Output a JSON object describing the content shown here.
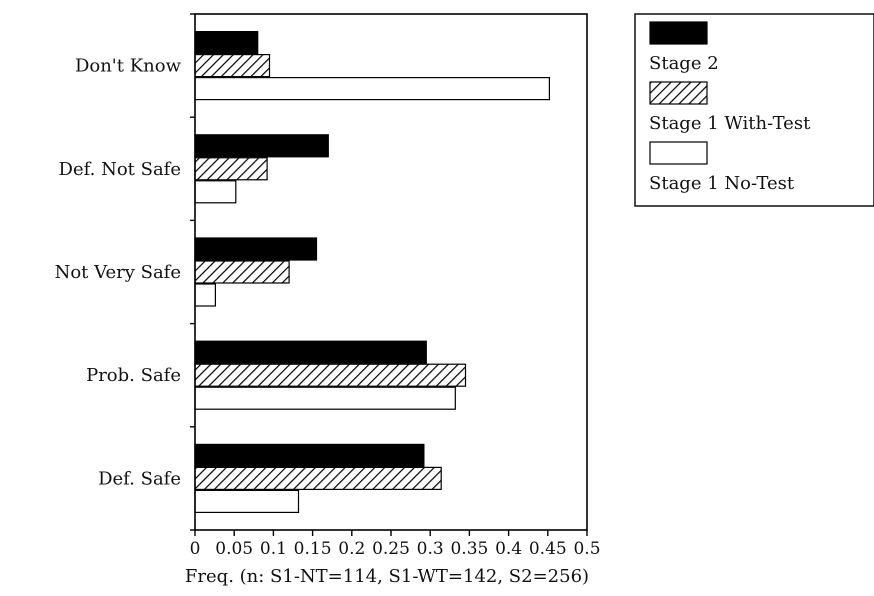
{
  "chart_data": {
    "type": "bar",
    "orientation": "horizontal",
    "categories": [
      "Don't Know",
      "Def. Not Safe",
      "Not Very Safe",
      "Prob. Safe",
      "Def. Safe"
    ],
    "series": [
      {
        "name": "Stage 2",
        "fill": "solid",
        "color": "#000000",
        "values": [
          0.08,
          0.17,
          0.155,
          0.295,
          0.292
        ]
      },
      {
        "name": "Stage 1 With-Test",
        "fill": "hatched",
        "color": "#000000",
        "values": [
          0.095,
          0.092,
          0.12,
          0.345,
          0.314
        ]
      },
      {
        "name": "Stage 1 No-Test",
        "fill": "empty",
        "color": "#000000",
        "values": [
          0.452,
          0.052,
          0.026,
          0.332,
          0.132
        ]
      }
    ],
    "xlim": [
      0,
      0.5
    ],
    "xticks": [
      "0",
      "0.05",
      "0.1",
      "0.15",
      "0.2",
      "0.25",
      "0.3",
      "0.35",
      "0.4",
      "0.45",
      "0.5"
    ],
    "xlabel": "Freq. (n: S1-NT=114,  S1-WT=142,  S2=256)",
    "ylabel": "",
    "legend_position": "top-right",
    "grid": false
  }
}
